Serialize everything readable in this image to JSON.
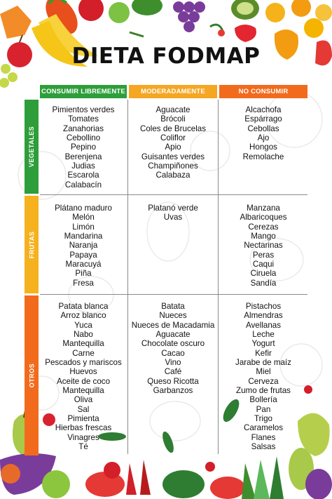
{
  "title": "DIETA FODMAP",
  "columns": [
    {
      "label": "CONSUMIR LIBREMENTE",
      "color": "#2e9e3a"
    },
    {
      "label": "MODERADAMENTE",
      "color": "#f5a623"
    },
    {
      "label": "NO CONSUMIR",
      "color": "#f26b1d"
    }
  ],
  "rows": [
    {
      "label": "VEGETALES",
      "color": "#2e9e3a",
      "cells": [
        [
          "Pimientos verdes",
          "Tomates",
          "Zanahorias",
          "Cebollino",
          "Pepino",
          "Berenjena",
          "Judias",
          "Escarola",
          "Calabacín"
        ],
        [
          "Aguacate",
          "Brócoli",
          "Coles de Brucelas",
          "Coliflor",
          "Apio",
          "Guisantes verdes",
          "Champiñones",
          "Calabaza"
        ],
        [
          "Alcachofa",
          "Espárrago",
          "Cebollas",
          "Ajo",
          "Hongos",
          "Remolache"
        ]
      ]
    },
    {
      "label": "FRUTAS",
      "color": "#f5b21e",
      "cells": [
        [
          "Plátano maduro",
          "Melón",
          "Limón",
          "Mandarina",
          "Naranja",
          "Papaya",
          "Maracuyá",
          "Piña",
          "Fresa"
        ],
        [
          "Platanó verde",
          "Uvas"
        ],
        [
          "Manzana",
          "Albaricoques",
          "Cerezas",
          "Mango",
          "Nectarinas",
          "Peras",
          "Caqui",
          "Ciruela",
          "Sandía"
        ]
      ]
    },
    {
      "label": "OTROS",
      "color": "#f26b1d",
      "cells": [
        [
          "Patata blanca",
          "Arroz blanco",
          "Yuca",
          "Nabo",
          "Mantequilla",
          "Carne",
          "Pescados y mariscos",
          "Huevos",
          "Aceite de coco",
          "Mantequilla",
          "Oliva",
          "Sal",
          "Pimienta",
          "Hierbas frescas",
          "Vinagres",
          "Té"
        ],
        [
          "Batata",
          "Nueces",
          "Nueces de Macadamia",
          "Aguacate",
          "Chocolate oscuro",
          "Cacao",
          "Vino",
          "Café",
          "Queso Ricotta",
          "Garbanzos"
        ],
        [
          "Pistachos",
          "Almendras",
          "Avellanas",
          "Leche",
          "Yogurt",
          "Kefir",
          "Jarabe de maíz",
          "Miel",
          "Cerveza",
          "Zumo de frutas",
          "Bollería",
          "Pan",
          "Trigo",
          "Caramelos",
          "Flanes",
          "Salsas"
        ]
      ]
    }
  ]
}
